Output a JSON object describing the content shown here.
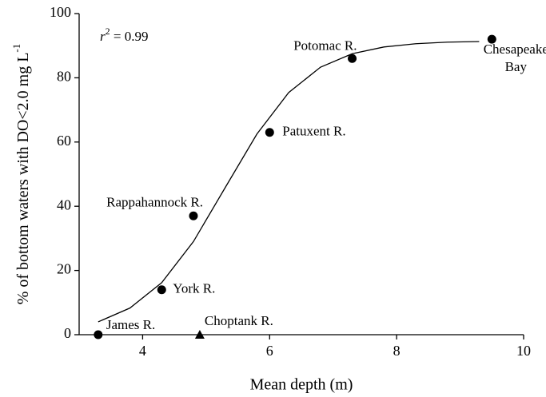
{
  "chart_data": {
    "type": "scatter",
    "xlabel": "Mean depth (m)",
    "ylabel": {
      "text": "% of bottom waters with DO<2.0 mg L",
      "sup": "-1"
    },
    "annotation": {
      "base": "r",
      "sup": "2",
      "rest": " = 0.99"
    },
    "xlim": [
      3,
      10
    ],
    "xticks": [
      4,
      6,
      8,
      10
    ],
    "ylim": [
      0,
      100
    ],
    "yticks": [
      0,
      20,
      40,
      60,
      80,
      100
    ],
    "color": "#000000",
    "points": [
      {
        "label": [
          "James R."
        ],
        "x": 3.3,
        "y": 0,
        "marker": "circle"
      },
      {
        "label": [
          "York R."
        ],
        "x": 4.3,
        "y": 14,
        "marker": "circle"
      },
      {
        "label": [
          "Rappahannock R."
        ],
        "x": 4.8,
        "y": 37,
        "marker": "circle"
      },
      {
        "label": [
          "Choptank R."
        ],
        "x": 4.9,
        "y": 0,
        "marker": "triangle"
      },
      {
        "label": [
          "Patuxent R."
        ],
        "x": 6.0,
        "y": 63,
        "marker": "circle"
      },
      {
        "label": [
          "Potomac R."
        ],
        "x": 7.3,
        "y": 86,
        "marker": "circle"
      },
      {
        "label": [
          "Chesapeake",
          "Bay"
        ],
        "x": 9.5,
        "y": 92,
        "marker": "circle"
      }
    ],
    "fit": {
      "x": [
        3.3,
        3.8,
        4.3,
        4.8,
        5.3,
        5.8,
        6.3,
        6.8,
        7.3,
        7.8,
        8.3,
        8.8,
        9.3
      ],
      "values": [
        4.0,
        8.3,
        16.2,
        29.0,
        45.8,
        62.5,
        75.4,
        83.3,
        87.5,
        89.6,
        90.6,
        91.1,
        91.3
      ]
    }
  }
}
